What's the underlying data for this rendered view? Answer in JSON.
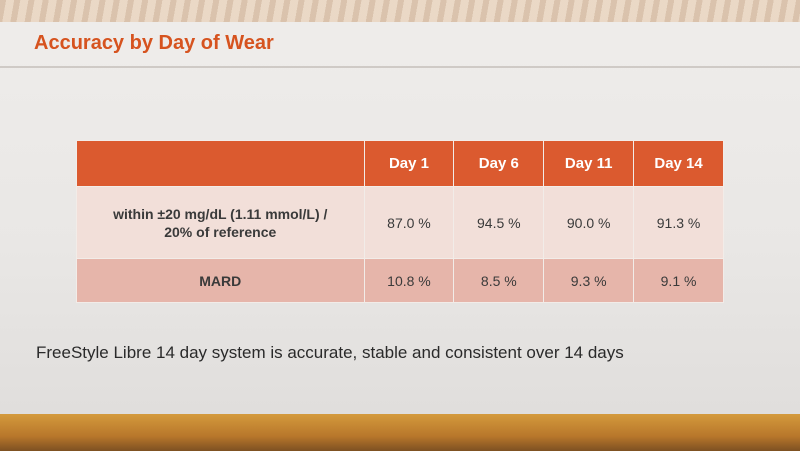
{
  "slide": {
    "title": "Accuracy by Day of Wear",
    "caption": "FreeStyle Libre 14 day system is accurate, stable and consistent over 14 days"
  },
  "table": {
    "header": [
      "",
      "Day 1",
      "Day 6",
      "Day 11",
      "Day 14"
    ],
    "rows": [
      {
        "label_line1": "within ±20 mg/dL (1.11 mmol/L) /",
        "label_line2": "20% of reference",
        "values": [
          "87.0 %",
          "94.5 %",
          "90.0 %",
          "91.3 %"
        ]
      },
      {
        "label_line1": "MARD",
        "values": [
          "10.8 %",
          "8.5 %",
          "9.3 %",
          "9.1 %"
        ]
      }
    ]
  },
  "colors": {
    "title": "#d6531f",
    "header_bg": "#db5a2f",
    "row1_bg": "#f2dfd9",
    "row2_bg": "#e6b5aa"
  }
}
